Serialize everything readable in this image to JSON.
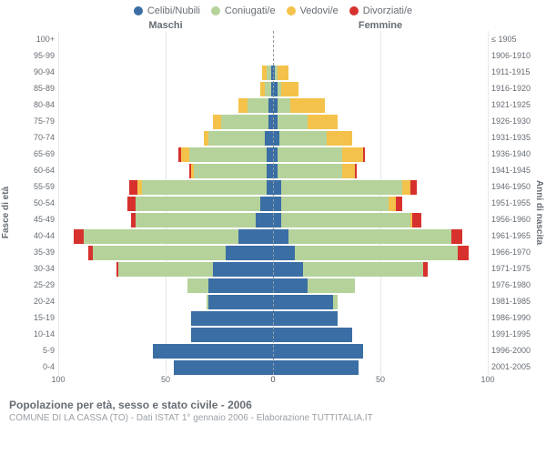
{
  "colors": {
    "celibi": "#3a6ea5",
    "coniugati": "#b5d29a",
    "vedovi": "#f4c24a",
    "divorziati": "#d7312e",
    "grid": "#e8e8e8",
    "center": "#949ca4",
    "text": "#666d74",
    "text_muted": "#9aa0a6",
    "background": "#ffffff"
  },
  "legend": [
    {
      "key": "celibi",
      "label": "Celibi/Nubili"
    },
    {
      "key": "coniugati",
      "label": "Coniugati/e"
    },
    {
      "key": "vedovi",
      "label": "Vedovi/e"
    },
    {
      "key": "divorziati",
      "label": "Divorziati/e"
    }
  ],
  "header_male": "Maschi",
  "header_female": "Femmine",
  "y_left_title": "Fasce di età",
  "y_right_title": "Anni di nascita",
  "xlim": [
    0,
    100
  ],
  "xticks_left": [
    100,
    50,
    0
  ],
  "xticks_right": [
    0,
    50,
    100
  ],
  "bands": [
    {
      "age": "0-4",
      "birth": "2001-2005"
    },
    {
      "age": "5-9",
      "birth": "1996-2000"
    },
    {
      "age": "10-14",
      "birth": "1991-1995"
    },
    {
      "age": "15-19",
      "birth": "1986-1990"
    },
    {
      "age": "20-24",
      "birth": "1981-1985"
    },
    {
      "age": "25-29",
      "birth": "1976-1980"
    },
    {
      "age": "30-34",
      "birth": "1971-1975"
    },
    {
      "age": "35-39",
      "birth": "1966-1970"
    },
    {
      "age": "40-44",
      "birth": "1961-1965"
    },
    {
      "age": "45-49",
      "birth": "1956-1960"
    },
    {
      "age": "50-54",
      "birth": "1951-1955"
    },
    {
      "age": "55-59",
      "birth": "1946-1950"
    },
    {
      "age": "60-64",
      "birth": "1941-1945"
    },
    {
      "age": "65-69",
      "birth": "1936-1940"
    },
    {
      "age": "70-74",
      "birth": "1931-1935"
    },
    {
      "age": "75-79",
      "birth": "1926-1930"
    },
    {
      "age": "80-84",
      "birth": "1921-1925"
    },
    {
      "age": "85-89",
      "birth": "1916-1920"
    },
    {
      "age": "90-94",
      "birth": "1911-1915"
    },
    {
      "age": "95-99",
      "birth": "1906-1910"
    },
    {
      "age": "100+",
      "birth": "≤ 1905"
    }
  ],
  "male": [
    {
      "celibi": 46,
      "coniugati": 0,
      "vedovi": 0,
      "divorziati": 0
    },
    {
      "celibi": 56,
      "coniugati": 0,
      "vedovi": 0,
      "divorziati": 0
    },
    {
      "celibi": 38,
      "coniugati": 0,
      "vedovi": 0,
      "divorziati": 0
    },
    {
      "celibi": 38,
      "coniugati": 0,
      "vedovi": 0,
      "divorziati": 0
    },
    {
      "celibi": 30,
      "coniugati": 1,
      "vedovi": 0,
      "divorziati": 0
    },
    {
      "celibi": 30,
      "coniugati": 10,
      "vedovi": 0,
      "divorziati": 0
    },
    {
      "celibi": 28,
      "coniugati": 44,
      "vedovi": 0,
      "divorziati": 1
    },
    {
      "celibi": 22,
      "coniugati": 62,
      "vedovi": 0,
      "divorziati": 2
    },
    {
      "celibi": 16,
      "coniugati": 72,
      "vedovi": 0,
      "divorziati": 5
    },
    {
      "celibi": 8,
      "coniugati": 56,
      "vedovi": 0,
      "divorziati": 2
    },
    {
      "celibi": 6,
      "coniugati": 58,
      "vedovi": 0,
      "divorziati": 4
    },
    {
      "celibi": 3,
      "coniugati": 58,
      "vedovi": 2,
      "divorziati": 4
    },
    {
      "celibi": 3,
      "coniugati": 34,
      "vedovi": 1,
      "divorziati": 1
    },
    {
      "celibi": 3,
      "coniugati": 36,
      "vedovi": 4,
      "divorziati": 1
    },
    {
      "celibi": 4,
      "coniugati": 26,
      "vedovi": 2,
      "divorziati": 0
    },
    {
      "celibi": 2,
      "coniugati": 22,
      "vedovi": 4,
      "divorziati": 0
    },
    {
      "celibi": 2,
      "coniugati": 10,
      "vedovi": 4,
      "divorziati": 0
    },
    {
      "celibi": 1,
      "coniugati": 3,
      "vedovi": 2,
      "divorziati": 0
    },
    {
      "celibi": 1,
      "coniugati": 2,
      "vedovi": 2,
      "divorziati": 0
    },
    {
      "celibi": 0,
      "coniugati": 0,
      "vedovi": 0,
      "divorziati": 0
    },
    {
      "celibi": 0,
      "coniugati": 0,
      "vedovi": 0,
      "divorziati": 0
    }
  ],
  "female": [
    {
      "celibi": 40,
      "coniugati": 0,
      "vedovi": 0,
      "divorziati": 0
    },
    {
      "celibi": 42,
      "coniugati": 0,
      "vedovi": 0,
      "divorziati": 0
    },
    {
      "celibi": 37,
      "coniugati": 0,
      "vedovi": 0,
      "divorziati": 0
    },
    {
      "celibi": 30,
      "coniugati": 0,
      "vedovi": 0,
      "divorziati": 0
    },
    {
      "celibi": 28,
      "coniugati": 2,
      "vedovi": 0,
      "divorziati": 0
    },
    {
      "celibi": 16,
      "coniugati": 22,
      "vedovi": 0,
      "divorziati": 0
    },
    {
      "celibi": 14,
      "coniugati": 56,
      "vedovi": 0,
      "divorziati": 2
    },
    {
      "celibi": 10,
      "coniugati": 76,
      "vedovi": 0,
      "divorziati": 5
    },
    {
      "celibi": 7,
      "coniugati": 76,
      "vedovi": 0,
      "divorziati": 5
    },
    {
      "celibi": 4,
      "coniugati": 60,
      "vedovi": 1,
      "divorziati": 4
    },
    {
      "celibi": 4,
      "coniugati": 50,
      "vedovi": 3,
      "divorziati": 3
    },
    {
      "celibi": 4,
      "coniugati": 56,
      "vedovi": 4,
      "divorziati": 3
    },
    {
      "celibi": 2,
      "coniugati": 30,
      "vedovi": 6,
      "divorziati": 1
    },
    {
      "celibi": 2,
      "coniugati": 30,
      "vedovi": 10,
      "divorziati": 1
    },
    {
      "celibi": 3,
      "coniugati": 22,
      "vedovi": 12,
      "divorziati": 0
    },
    {
      "celibi": 2,
      "coniugati": 14,
      "vedovi": 14,
      "divorziati": 0
    },
    {
      "celibi": 2,
      "coniugati": 6,
      "vedovi": 16,
      "divorziati": 0
    },
    {
      "celibi": 2,
      "coniugati": 2,
      "vedovi": 8,
      "divorziati": 0
    },
    {
      "celibi": 1,
      "coniugati": 1,
      "vedovi": 5,
      "divorziati": 0
    },
    {
      "celibi": 0,
      "coniugati": 0,
      "vedovi": 0,
      "divorziati": 0
    },
    {
      "celibi": 0,
      "coniugati": 0,
      "vedovi": 0,
      "divorziati": 0
    }
  ],
  "footer_title": "Popolazione per età, sesso e stato civile - 2006",
  "footer_sub": "COMUNE DI LA CASSA (TO) - Dati ISTAT 1° gennaio 2006 - Elaborazione TUTTITALIA.IT"
}
